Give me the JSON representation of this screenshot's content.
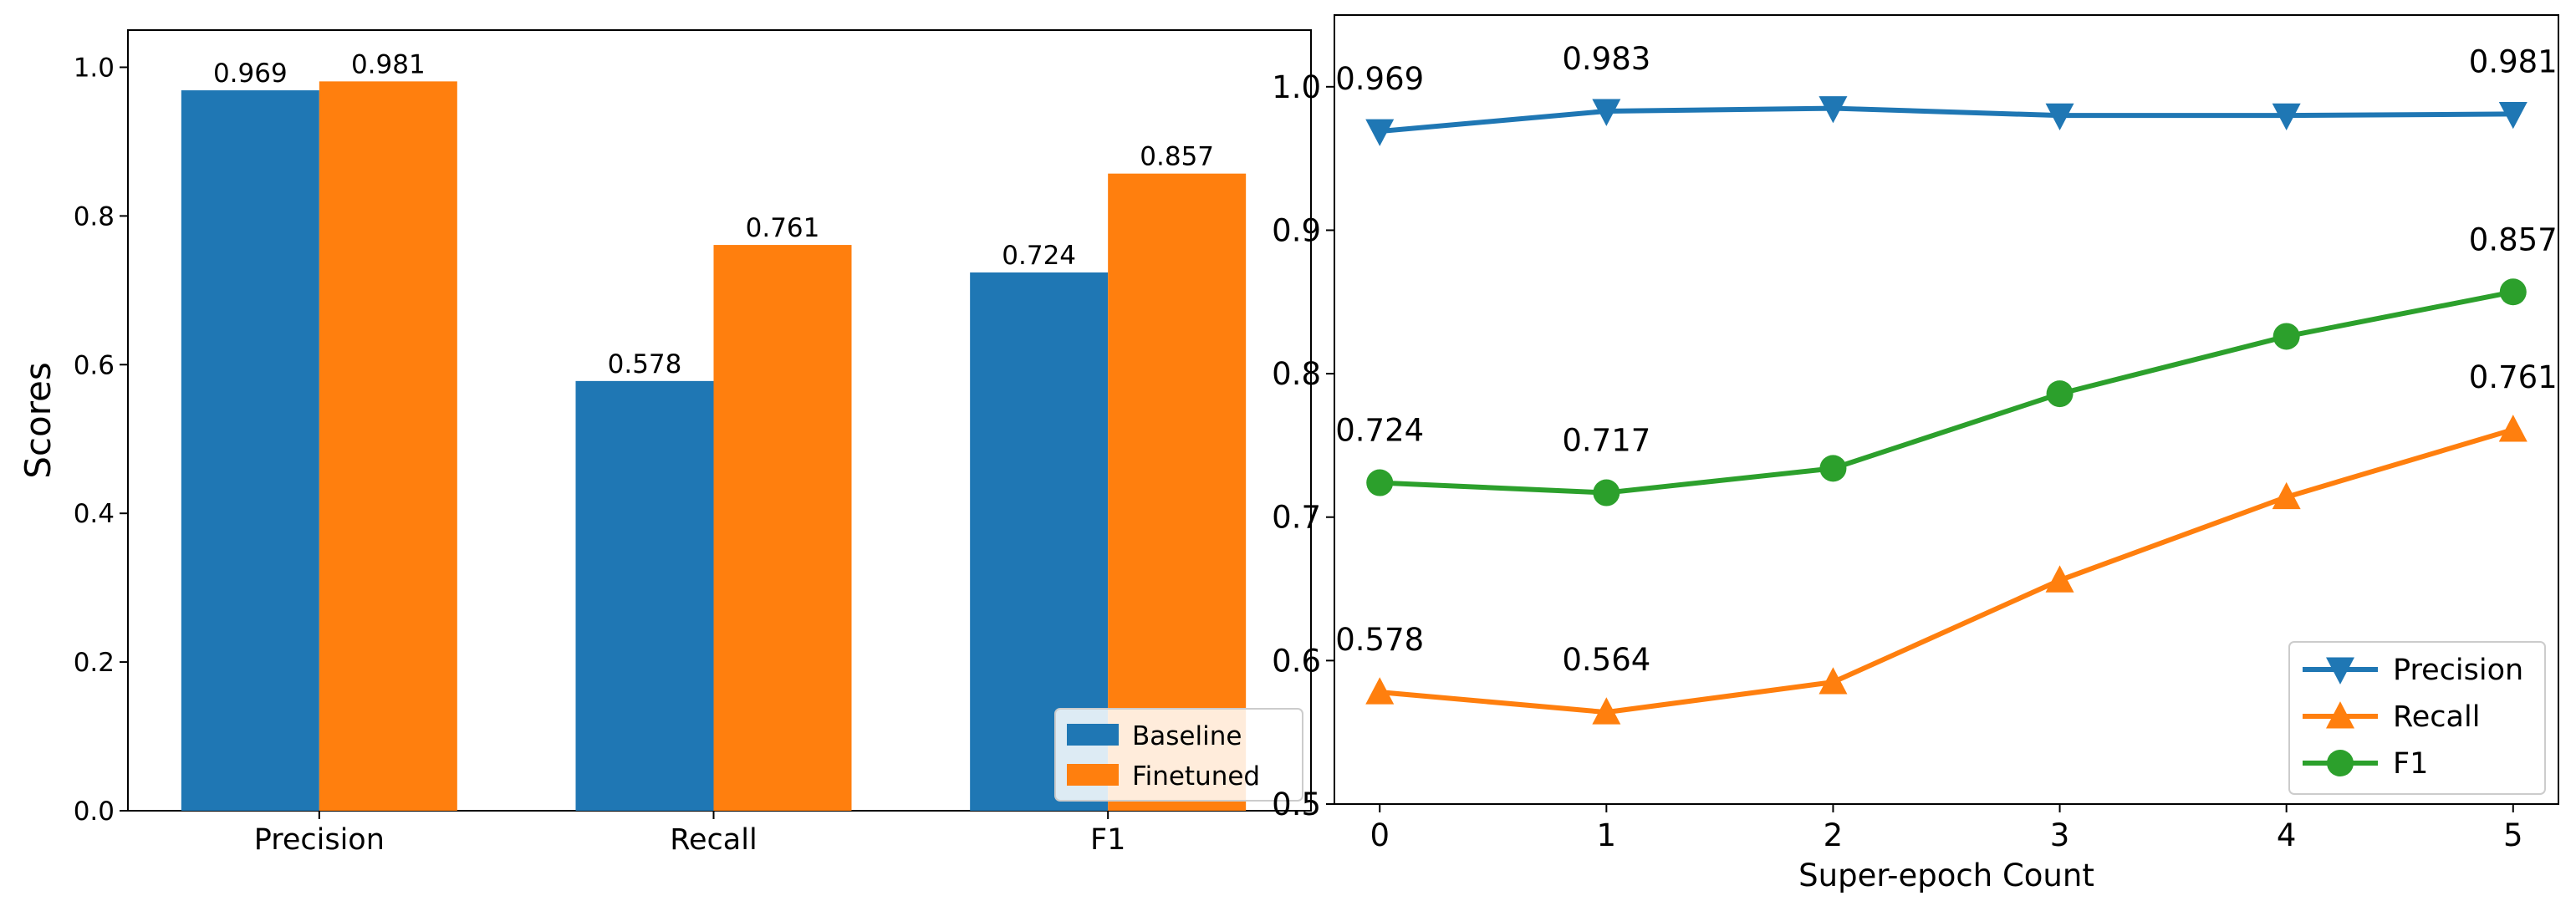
{
  "chart_data": [
    {
      "type": "bar",
      "title": "",
      "xlabel": "",
      "ylabel": "Scores",
      "ylim": [
        0,
        1.05
      ],
      "yticks": [
        0.0,
        0.2,
        0.4,
        0.6,
        0.8,
        1.0
      ],
      "ytick_labels": [
        "0.0",
        "0.2",
        "0.4",
        "0.6",
        "0.8",
        "1.0"
      ],
      "categories": [
        "Precision",
        "Recall",
        "F1"
      ],
      "series": [
        {
          "name": "Baseline",
          "values": [
            0.969,
            0.578,
            0.724
          ],
          "labels": [
            "0.969",
            "0.578",
            "0.724"
          ],
          "color": "#1f77b4"
        },
        {
          "name": "Finetuned",
          "values": [
            0.981,
            0.761,
            0.857
          ],
          "labels": [
            "0.981",
            "0.761",
            "0.857"
          ],
          "color": "#ff7f0e"
        }
      ],
      "legend": {
        "placement": "lower-right",
        "entries": [
          "Baseline",
          "Finetuned"
        ]
      },
      "grid": false
    },
    {
      "type": "line",
      "title": "",
      "xlabel": "Super-epoch Count",
      "ylabel": "",
      "xlim": [
        -0.2,
        5.2
      ],
      "ylim": [
        0.5,
        1.05
      ],
      "x": [
        0,
        1,
        2,
        3,
        4,
        5
      ],
      "xtick_labels": [
        "0",
        "1",
        "2",
        "3",
        "4",
        "5"
      ],
      "yticks": [
        0.5,
        0.6,
        0.7,
        0.8,
        0.9,
        1.0
      ],
      "ytick_labels": [
        "0.5",
        "0.6",
        "0.7",
        "0.8",
        "0.9",
        "1.0"
      ],
      "series": [
        {
          "name": "Precision",
          "marker": "triangle-down",
          "color": "#1f77b4",
          "values": [
            0.969,
            0.983,
            0.985,
            0.98,
            0.98,
            0.981
          ],
          "annotations": [
            {
              "index": 0,
              "text": "0.969"
            },
            {
              "index": 1,
              "text": "0.983"
            },
            {
              "index": 5,
              "text": "0.981"
            }
          ]
        },
        {
          "name": "Recall",
          "marker": "triangle-up",
          "color": "#ff7f0e",
          "values": [
            0.578,
            0.564,
            0.585,
            0.656,
            0.714,
            0.761
          ],
          "annotations": [
            {
              "index": 0,
              "text": "0.578"
            },
            {
              "index": 1,
              "text": "0.564"
            },
            {
              "index": 5,
              "text": "0.761"
            }
          ]
        },
        {
          "name": "F1",
          "marker": "circle",
          "color": "#2ca02c",
          "values": [
            0.724,
            0.717,
            0.734,
            0.786,
            0.826,
            0.857
          ],
          "annotations": [
            {
              "index": 0,
              "text": "0.724"
            },
            {
              "index": 1,
              "text": "0.717"
            },
            {
              "index": 5,
              "text": "0.857"
            }
          ]
        }
      ],
      "legend": {
        "placement": "lower-right",
        "entries": [
          "Precision",
          "Recall",
          "F1"
        ]
      },
      "grid": false
    }
  ]
}
